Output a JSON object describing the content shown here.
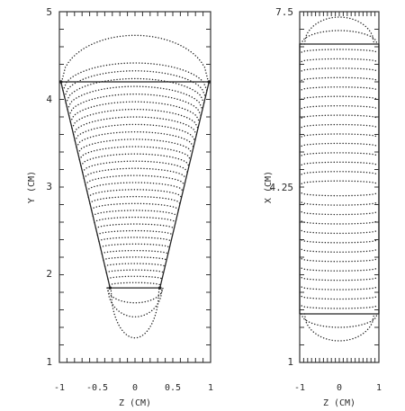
{
  "chart_data": [
    {
      "type": "line",
      "panel": "left",
      "xlabel": "Z (CM)",
      "ylabel": "Y (CM)",
      "xlim": [
        -1,
        1
      ],
      "ylim": [
        1,
        5
      ],
      "xticks": [
        "-1",
        "-0.5",
        "0",
        "0.5",
        "1"
      ],
      "yticks": [
        "1",
        "2",
        "3",
        "4",
        "5"
      ],
      "grid": false,
      "outline": [
        [
          -0.33,
          1.85
        ],
        [
          0.33,
          1.85
        ],
        [
          0.98,
          4.2
        ],
        [
          -0.98,
          4.2
        ],
        [
          -0.33,
          1.85
        ]
      ],
      "contours": {
        "style": "dotted",
        "count": 32,
        "y_center_range": [
          1.88,
          4.1
        ],
        "curvature": [
          0.03,
          0.6
        ],
        "outer_arc": {
          "center_y": 4.2,
          "half_width": 0.97,
          "height": 0.53
        },
        "lower_lobes": [
          {
            "center_y": 1.85,
            "half_width": 0.37,
            "depth": 0.17
          },
          {
            "center_y": 1.85,
            "half_width": 0.36,
            "depth": 0.33
          },
          {
            "center_y": 1.85,
            "half_width": 0.32,
            "depth": 0.57
          }
        ]
      }
    },
    {
      "type": "line",
      "panel": "right",
      "xlabel": "Z (CM)",
      "ylabel": "X (CM)",
      "xlim": [
        -1,
        1
      ],
      "ylim": [
        1,
        7.5
      ],
      "xticks": [
        "-1",
        "0",
        "1"
      ],
      "yticks": [
        "1",
        "4.25",
        "7.5"
      ],
      "grid": false,
      "outline": [
        [
          -1,
          1.9
        ],
        [
          1,
          1.9
        ],
        [
          1,
          6.9
        ],
        [
          -1,
          6.9
        ],
        [
          -1,
          1.9
        ]
      ],
      "contours": {
        "style": "dotted",
        "count": 28,
        "x_center_range": [
          2.05,
          6.75
        ],
        "curvature": 0.05,
        "top_arcs": [
          {
            "center_y": 6.9,
            "half_width": 0.96,
            "height": 0.25
          },
          {
            "center_y": 6.9,
            "half_width": 0.88,
            "height": 0.5
          }
        ],
        "bottom_arcs": [
          {
            "center_y": 1.9,
            "half_width": 0.96,
            "depth": 0.25
          },
          {
            "center_y": 1.9,
            "half_width": 0.88,
            "depth": 0.5
          }
        ]
      }
    }
  ]
}
